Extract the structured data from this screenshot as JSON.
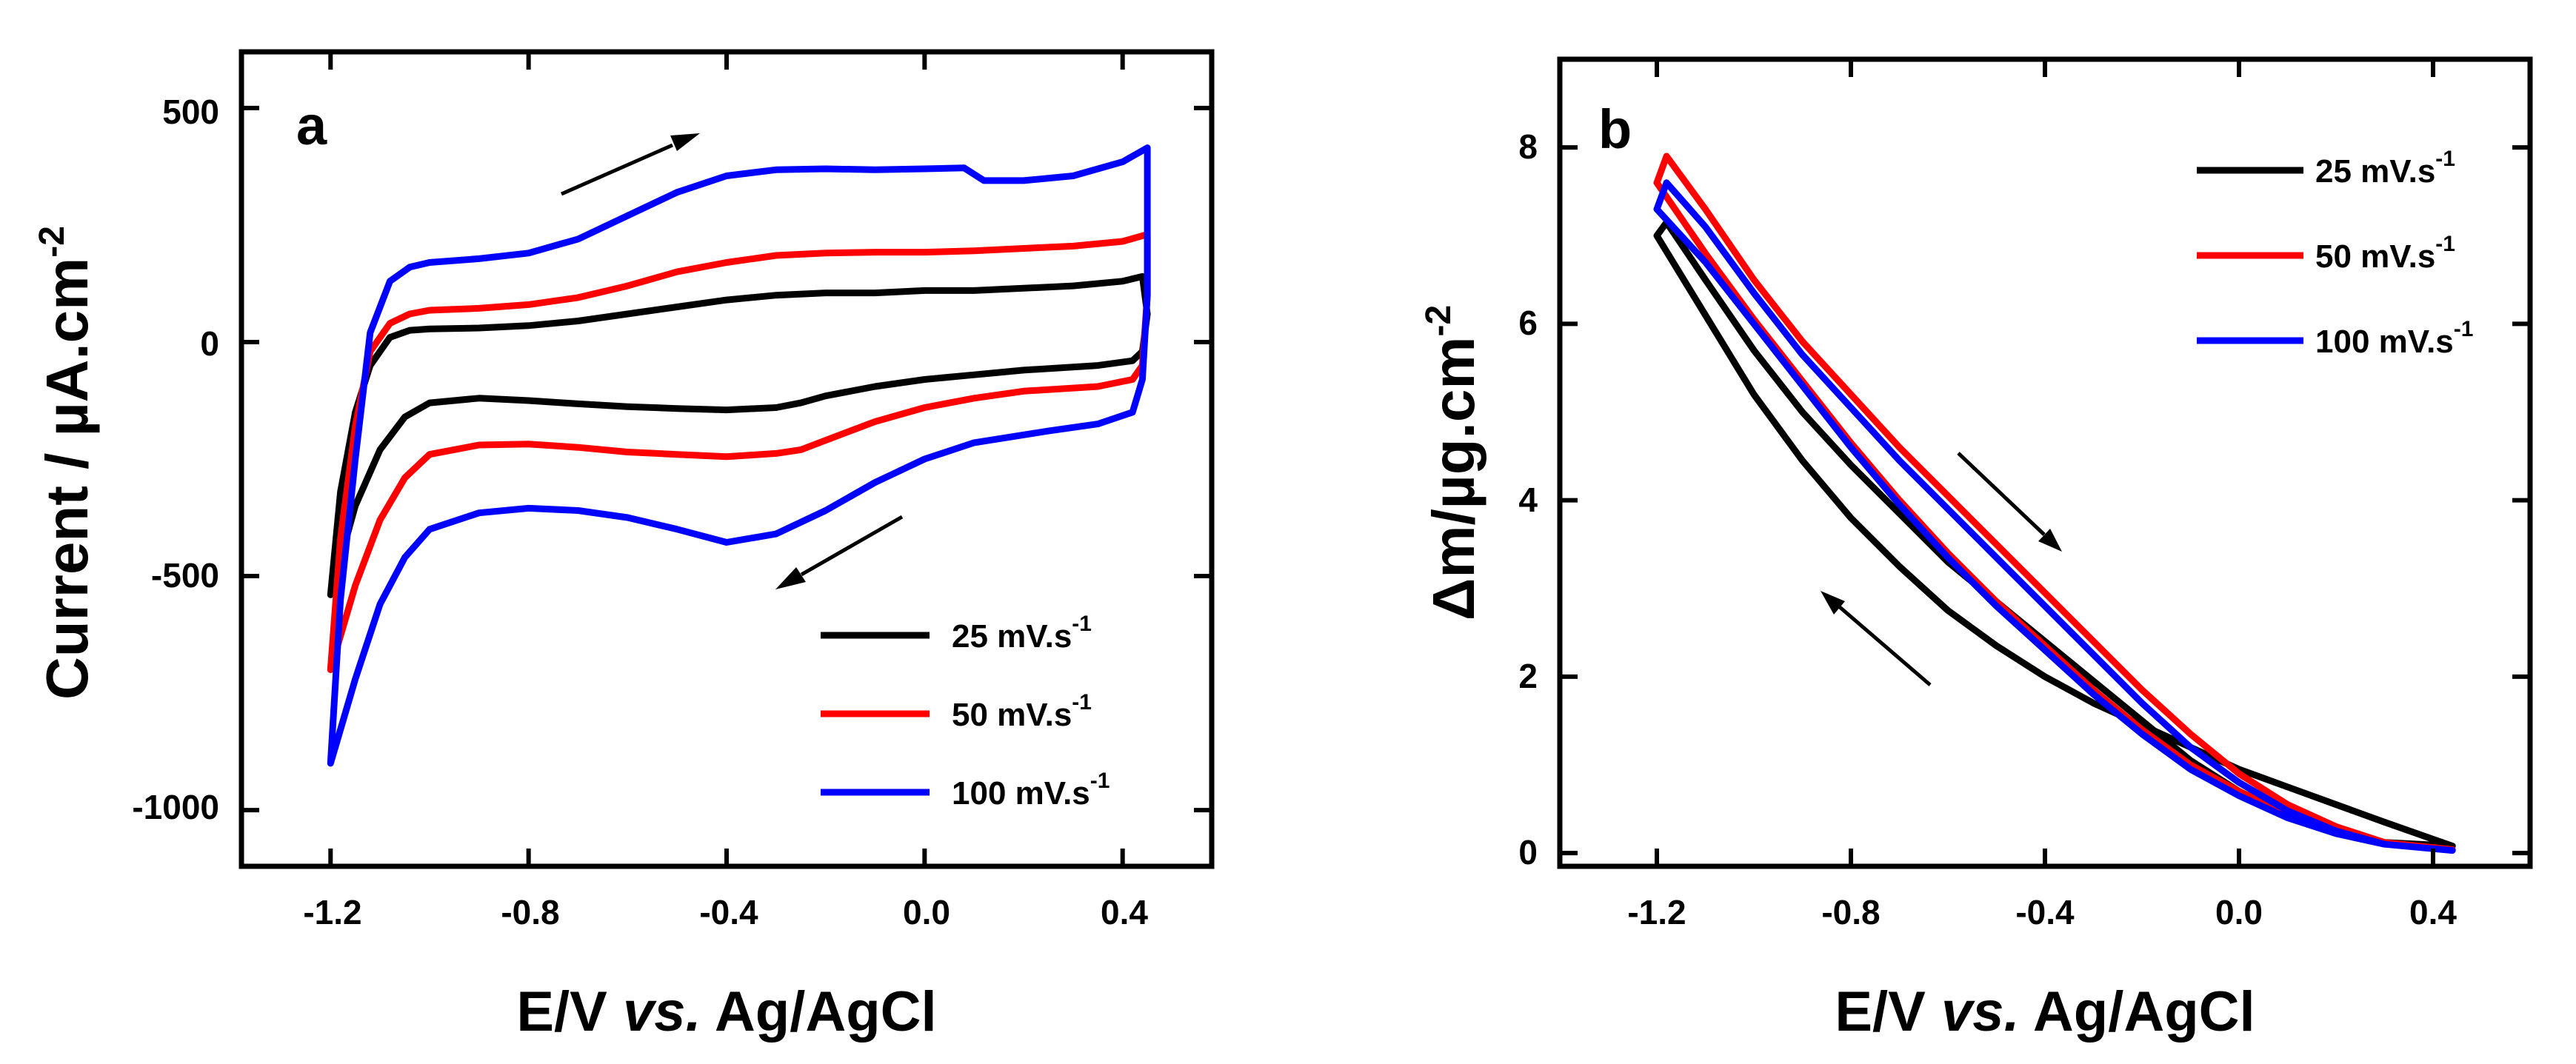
{
  "chart_data": [
    {
      "panel": "a",
      "type": "line",
      "subtype": "cyclic voltammogram",
      "panel_label": "a",
      "xlabel_parts": [
        "E/V ",
        "vs.",
        " Ag/AgCl"
      ],
      "ylabel": "Current / µA.cm",
      "ylabel_superscript": "-2",
      "xlim": [
        -1.38,
        0.58
      ],
      "ylim": [
        -1120,
        620
      ],
      "xticks": [
        -1.2,
        -0.8,
        -0.4,
        0.0,
        0.4
      ],
      "xtick_labels": [
        "-1.2",
        "-0.8",
        "-0.4",
        "0.0",
        "0.4"
      ],
      "yticks": [
        -1000,
        -500,
        0,
        500
      ],
      "ytick_labels": [
        "-1000",
        "-500",
        "0",
        "500"
      ],
      "legend_position": "bottom-right",
      "arrows": [
        {
          "from": [
            -0.72,
            320
          ],
          "to": [
            -0.44,
            440
          ],
          "meaning": "anodic scan direction"
        },
        {
          "from": [
            -0.02,
            -370
          ],
          "to": [
            -0.26,
            -510
          ],
          "meaning": "cathodic scan direction"
        }
      ],
      "series": [
        {
          "name": "25 mV.s",
          "name_superscript": "-1",
          "color": "#000000",
          "anodic": [
            [
              -1.2,
              -540
            ],
            [
              -1.18,
              -320
            ],
            [
              -1.15,
              -150
            ],
            [
              -1.12,
              -50
            ],
            [
              -1.08,
              10
            ],
            [
              -1.04,
              25
            ],
            [
              -1.0,
              28
            ],
            [
              -0.9,
              30
            ],
            [
              -0.8,
              35
            ],
            [
              -0.7,
              45
            ],
            [
              -0.6,
              60
            ],
            [
              -0.5,
              75
            ],
            [
              -0.4,
              90
            ],
            [
              -0.3,
              100
            ],
            [
              -0.2,
              105
            ],
            [
              -0.1,
              105
            ],
            [
              0.0,
              110
            ],
            [
              0.1,
              110
            ],
            [
              0.2,
              115
            ],
            [
              0.3,
              120
            ],
            [
              0.4,
              130
            ],
            [
              0.44,
              140
            ]
          ],
          "cathodic": [
            [
              0.45,
              140
            ],
            [
              0.45,
              60
            ],
            [
              0.44,
              -20
            ],
            [
              0.42,
              -40
            ],
            [
              0.35,
              -50
            ],
            [
              0.2,
              -60
            ],
            [
              0.1,
              -70
            ],
            [
              0.0,
              -80
            ],
            [
              -0.1,
              -95
            ],
            [
              -0.2,
              -115
            ],
            [
              -0.25,
              -130
            ],
            [
              -0.3,
              -140
            ],
            [
              -0.4,
              -145
            ],
            [
              -0.5,
              -142
            ],
            [
              -0.6,
              -138
            ],
            [
              -0.7,
              -132
            ],
            [
              -0.8,
              -125
            ],
            [
              -0.9,
              -120
            ],
            [
              -1.0,
              -130
            ],
            [
              -1.05,
              -160
            ],
            [
              -1.1,
              -230
            ],
            [
              -1.15,
              -350
            ],
            [
              -1.2,
              -540
            ]
          ]
        },
        {
          "name": "50 mV.s",
          "name_superscript": "-1",
          "color": "#ff0000",
          "anodic": [
            [
              -1.2,
              -700
            ],
            [
              -1.18,
              -420
            ],
            [
              -1.15,
              -180
            ],
            [
              -1.12,
              -20
            ],
            [
              -1.08,
              40
            ],
            [
              -1.04,
              60
            ],
            [
              -1.0,
              68
            ],
            [
              -0.9,
              72
            ],
            [
              -0.8,
              80
            ],
            [
              -0.7,
              95
            ],
            [
              -0.6,
              120
            ],
            [
              -0.5,
              150
            ],
            [
              -0.4,
              170
            ],
            [
              -0.3,
              185
            ],
            [
              -0.2,
              190
            ],
            [
              -0.1,
              192
            ],
            [
              0.0,
              192
            ],
            [
              0.1,
              195
            ],
            [
              0.2,
              200
            ],
            [
              0.3,
              205
            ],
            [
              0.4,
              215
            ],
            [
              0.45,
              230
            ]
          ],
          "cathodic": [
            [
              0.45,
              230
            ],
            [
              0.45,
              100
            ],
            [
              0.44,
              -50
            ],
            [
              0.42,
              -80
            ],
            [
              0.35,
              -95
            ],
            [
              0.2,
              -105
            ],
            [
              0.1,
              -120
            ],
            [
              0.0,
              -140
            ],
            [
              -0.1,
              -170
            ],
            [
              -0.2,
              -210
            ],
            [
              -0.25,
              -230
            ],
            [
              -0.3,
              -238
            ],
            [
              -0.4,
              -245
            ],
            [
              -0.5,
              -240
            ],
            [
              -0.6,
              -235
            ],
            [
              -0.7,
              -225
            ],
            [
              -0.8,
              -218
            ],
            [
              -0.9,
              -220
            ],
            [
              -1.0,
              -240
            ],
            [
              -1.05,
              -290
            ],
            [
              -1.1,
              -380
            ],
            [
              -1.15,
              -520
            ],
            [
              -1.2,
              -700
            ]
          ]
        },
        {
          "name": "100 mV.s",
          "name_superscript": "-1",
          "color": "#0000ff",
          "anodic": [
            [
              -1.2,
              -900
            ],
            [
              -1.18,
              -550
            ],
            [
              -1.15,
              -250
            ],
            [
              -1.12,
              20
            ],
            [
              -1.08,
              130
            ],
            [
              -1.04,
              160
            ],
            [
              -1.0,
              170
            ],
            [
              -0.9,
              178
            ],
            [
              -0.8,
              190
            ],
            [
              -0.7,
              220
            ],
            [
              -0.6,
              270
            ],
            [
              -0.5,
              320
            ],
            [
              -0.4,
              355
            ],
            [
              -0.3,
              368
            ],
            [
              -0.2,
              370
            ],
            [
              -0.1,
              368
            ],
            [
              0.0,
              370
            ],
            [
              0.08,
              372
            ],
            [
              0.12,
              345
            ],
            [
              0.2,
              345
            ],
            [
              0.3,
              355
            ],
            [
              0.4,
              385
            ],
            [
              0.45,
              415
            ]
          ],
          "cathodic": [
            [
              0.45,
              330
            ],
            [
              0.45,
              100
            ],
            [
              0.44,
              -80
            ],
            [
              0.42,
              -150
            ],
            [
              0.35,
              -175
            ],
            [
              0.25,
              -190
            ],
            [
              0.1,
              -215
            ],
            [
              0.0,
              -250
            ],
            [
              -0.1,
              -300
            ],
            [
              -0.2,
              -360
            ],
            [
              -0.3,
              -410
            ],
            [
              -0.4,
              -428
            ],
            [
              -0.5,
              -400
            ],
            [
              -0.6,
              -375
            ],
            [
              -0.7,
              -360
            ],
            [
              -0.8,
              -355
            ],
            [
              -0.9,
              -365
            ],
            [
              -1.0,
              -400
            ],
            [
              -1.05,
              -460
            ],
            [
              -1.1,
              -560
            ],
            [
              -1.15,
              -720
            ],
            [
              -1.2,
              -900
            ]
          ]
        }
      ]
    },
    {
      "panel": "b",
      "type": "line",
      "subtype": "mass change vs potential",
      "panel_label": "b",
      "xlabel_parts": [
        "E/V ",
        "vs.",
        " Ag/AgCl"
      ],
      "ylabel": "Δm/µg.cm",
      "ylabel_superscript": "-2",
      "xlim": [
        -1.4,
        0.6
      ],
      "ylim": [
        -0.15,
        9.0
      ],
      "xticks": [
        -1.2,
        -0.8,
        -0.4,
        0.0,
        0.4
      ],
      "xtick_labels": [
        "-1.2",
        "-0.8",
        "-0.4",
        "0.0",
        "0.4"
      ],
      "yticks": [
        0,
        2,
        4,
        6,
        8
      ],
      "ytick_labels": [
        "0",
        "2",
        "4",
        "6",
        "8"
      ],
      "legend_position": "top-right",
      "arrows": [
        {
          "from": [
            -0.52,
            4.55
          ],
          "to": [
            -0.34,
            3.55
          ],
          "meaning": "anodic scan direction"
        },
        {
          "from": [
            -0.71,
            2.0
          ],
          "to": [
            -0.86,
            3.0
          ],
          "meaning": "cathodic scan direction"
        }
      ],
      "series": [
        {
          "name": "25 mV.s",
          "name_superscript": "-1",
          "color": "#000000",
          "anodic": [
            [
              -1.2,
              7.0
            ],
            [
              -1.18,
              7.15
            ],
            [
              -1.1,
              6.5
            ],
            [
              -1.0,
              5.7
            ],
            [
              -0.9,
              5.0
            ],
            [
              -0.8,
              4.4
            ],
            [
              -0.7,
              3.85
            ],
            [
              -0.6,
              3.3
            ],
            [
              -0.5,
              2.85
            ],
            [
              -0.4,
              2.4
            ],
            [
              -0.3,
              1.95
            ],
            [
              -0.2,
              1.5
            ],
            [
              -0.1,
              1.05
            ],
            [
              0.0,
              0.7
            ],
            [
              0.1,
              0.45
            ],
            [
              0.2,
              0.25
            ],
            [
              0.3,
              0.12
            ],
            [
              0.44,
              0.08
            ]
          ],
          "cathodic": [
            [
              0.44,
              0.08
            ],
            [
              0.3,
              0.35
            ],
            [
              0.2,
              0.55
            ],
            [
              0.1,
              0.75
            ],
            [
              0.0,
              0.95
            ],
            [
              -0.1,
              1.2
            ],
            [
              -0.2,
              1.45
            ],
            [
              -0.3,
              1.7
            ],
            [
              -0.4,
              2.0
            ],
            [
              -0.5,
              2.35
            ],
            [
              -0.6,
              2.75
            ],
            [
              -0.7,
              3.25
            ],
            [
              -0.8,
              3.8
            ],
            [
              -0.9,
              4.45
            ],
            [
              -1.0,
              5.2
            ],
            [
              -1.1,
              6.1
            ],
            [
              -1.2,
              7.0
            ]
          ]
        },
        {
          "name": "50 mV.s",
          "name_superscript": "-1",
          "color": "#ff0000",
          "anodic": [
            [
              -1.2,
              7.6
            ],
            [
              -1.18,
              7.9
            ],
            [
              -1.1,
              7.3
            ],
            [
              -1.0,
              6.5
            ],
            [
              -0.9,
              5.8
            ],
            [
              -0.8,
              5.2
            ],
            [
              -0.7,
              4.6
            ],
            [
              -0.6,
              4.05
            ],
            [
              -0.5,
              3.5
            ],
            [
              -0.4,
              2.95
            ],
            [
              -0.3,
              2.4
            ],
            [
              -0.2,
              1.85
            ],
            [
              -0.1,
              1.35
            ],
            [
              0.0,
              0.9
            ],
            [
              0.1,
              0.55
            ],
            [
              0.2,
              0.3
            ],
            [
              0.3,
              0.12
            ],
            [
              0.44,
              0.04
            ]
          ],
          "cathodic": [
            [
              0.44,
              0.04
            ],
            [
              0.3,
              0.12
            ],
            [
              0.2,
              0.25
            ],
            [
              0.1,
              0.45
            ],
            [
              0.0,
              0.7
            ],
            [
              -0.1,
              1.0
            ],
            [
              -0.2,
              1.4
            ],
            [
              -0.3,
              1.85
            ],
            [
              -0.4,
              2.35
            ],
            [
              -0.5,
              2.85
            ],
            [
              -0.6,
              3.4
            ],
            [
              -0.7,
              4.0
            ],
            [
              -0.8,
              4.65
            ],
            [
              -0.9,
              5.35
            ],
            [
              -1.0,
              6.05
            ],
            [
              -1.1,
              6.8
            ],
            [
              -1.2,
              7.6
            ]
          ]
        },
        {
          "name": "100 mV.s",
          "name_superscript": "-1",
          "color": "#0000ff",
          "anodic": [
            [
              -1.2,
              7.3
            ],
            [
              -1.18,
              7.6
            ],
            [
              -1.1,
              7.1
            ],
            [
              -1.0,
              6.35
            ],
            [
              -0.9,
              5.65
            ],
            [
              -0.8,
              5.05
            ],
            [
              -0.7,
              4.45
            ],
            [
              -0.6,
              3.9
            ],
            [
              -0.5,
              3.35
            ],
            [
              -0.4,
              2.8
            ],
            [
              -0.3,
              2.25
            ],
            [
              -0.2,
              1.7
            ],
            [
              -0.1,
              1.2
            ],
            [
              0.0,
              0.8
            ],
            [
              0.1,
              0.48
            ],
            [
              0.2,
              0.25
            ],
            [
              0.3,
              0.1
            ],
            [
              0.44,
              0.03
            ]
          ],
          "cathodic": [
            [
              0.44,
              0.03
            ],
            [
              0.3,
              0.1
            ],
            [
              0.2,
              0.22
            ],
            [
              0.1,
              0.4
            ],
            [
              0.0,
              0.65
            ],
            [
              -0.1,
              0.95
            ],
            [
              -0.2,
              1.35
            ],
            [
              -0.3,
              1.8
            ],
            [
              -0.4,
              2.3
            ],
            [
              -0.5,
              2.8
            ],
            [
              -0.6,
              3.35
            ],
            [
              -0.7,
              3.95
            ],
            [
              -0.8,
              4.6
            ],
            [
              -0.9,
              5.3
            ],
            [
              -1.0,
              6.0
            ],
            [
              -1.1,
              6.7
            ],
            [
              -1.2,
              7.3
            ]
          ]
        }
      ]
    }
  ]
}
